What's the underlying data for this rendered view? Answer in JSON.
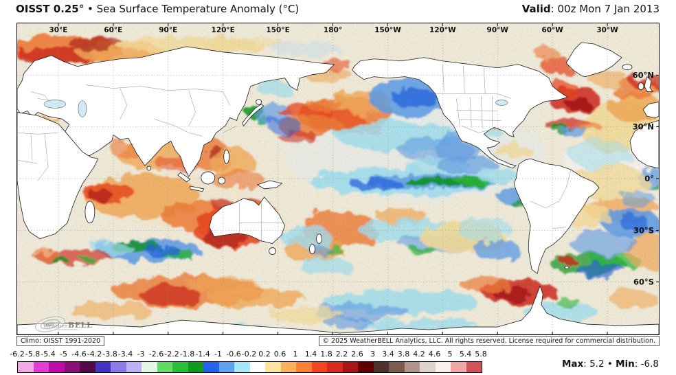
{
  "header": {
    "product": "OISST 0.25°",
    "title_rest": "• Sea Surface Temperature Anomaly (°C)",
    "valid_label": "Valid",
    "valid_rest": ": 00z Mon 7 Jan 2013"
  },
  "map": {
    "lon_labels": [
      "30°E",
      "60°E",
      "90°E",
      "120°E",
      "150°E",
      "180°",
      "150°W",
      "120°W",
      "90°W",
      "60°W",
      "30°W"
    ],
    "lat_labels": [
      "60°N",
      "30°N",
      "0°",
      "30°S",
      "60°S"
    ],
    "climo_note": "Climo: OISST 1991-2020",
    "copyright_note": "© 2025 WeatherBELL Analytics, LLC. All rights reserved. License required for commercial distribution.",
    "logo_weather": "Weather",
    "logo_bell": "BELL"
  },
  "colorbar": {
    "tick_labels": [
      "-6.2",
      "-5.8",
      "-5.4",
      "-5",
      "-4.6",
      "-4.2",
      "-3.8",
      "-3.4",
      "-3",
      "-2.6",
      "-2.2",
      "-1.8",
      "-1.4",
      "-1",
      "-0.6",
      "-0.2",
      "0.2",
      "0.6",
      "1",
      "1.4",
      "1.8",
      "2.2",
      "2.6",
      "3",
      "3.4",
      "3.8",
      "4.2",
      "4.6",
      "5",
      "5.4",
      "5.8"
    ],
    "colors": [
      "#f2aae4",
      "#e13fd3",
      "#bb0cab",
      "#8c0d7c",
      "#53094a",
      "#4433c0",
      "#8d7ce8",
      "#bfb1f5",
      "#e2f7e2",
      "#63da63",
      "#2cbd3a",
      "#0f9a22",
      "#2364e8",
      "#5fa1ee",
      "#a8e7f7",
      "#ffffff",
      "#fce4a0",
      "#fbb05c",
      "#f8813a",
      "#f2471d",
      "#d62a1e",
      "#a91414",
      "#600000",
      "#4e342c",
      "#7d5c50",
      "#b2948a",
      "#ded2cb",
      "#f9efed",
      "#f1a6a6",
      "#d4525a"
    ]
  },
  "footer": {
    "max_label": "Max",
    "max_value": ": 5.2",
    "bullet": "•",
    "min_label": "Min",
    "min_value": ": -6.8"
  }
}
